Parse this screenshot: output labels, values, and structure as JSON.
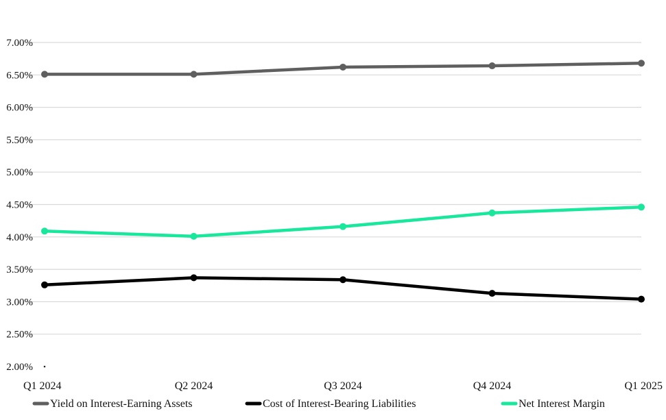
{
  "chart_data": {
    "type": "line",
    "categories": [
      "Q1 2024",
      "Q2 2024",
      "Q3 2024",
      "Q4 2024",
      "Q1 2025"
    ],
    "y_ticks": [
      "2.00%",
      "2.50%",
      "3.00%",
      "3.50%",
      "4.00%",
      "4.50%",
      "5.00%",
      "5.50%",
      "6.00%",
      "6.50%",
      "7.00%"
    ],
    "ylim": [
      2.0,
      7.0
    ],
    "grid": true,
    "legend_position": "bottom",
    "series": [
      {
        "name": "Yield on Interest-Earning Assets",
        "color": "#5f5f5f",
        "values": [
          6.51,
          6.51,
          6.62,
          6.64,
          6.68
        ]
      },
      {
        "name": "Cost of Interest-Bearing Liabilities",
        "color": "#000000",
        "values": [
          3.26,
          3.37,
          3.34,
          3.13,
          3.04
        ]
      },
      {
        "name": "Net Interest Margin",
        "color": "#19e79c",
        "values": [
          4.09,
          4.01,
          4.16,
          4.37,
          4.46
        ]
      }
    ]
  }
}
